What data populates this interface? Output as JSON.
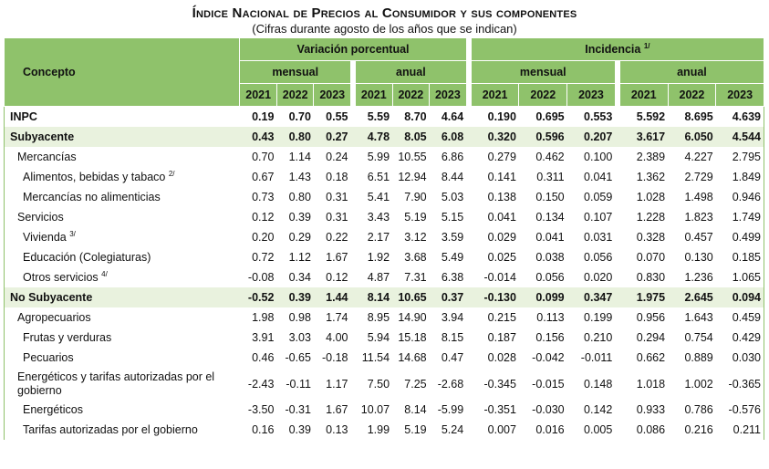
{
  "header": {
    "title": "Índice Nacional de Precios al Consumidor y sus componentes",
    "subtitle": "(Cifras durante agosto de los años que se indican)"
  },
  "columns": {
    "concept": "Concepto",
    "variacion": "Variación porcentual",
    "incidencia": "Incidencia",
    "incidencia_note": "1/",
    "mensual": "mensual",
    "anual": "anual",
    "years": [
      "2021",
      "2022",
      "2023"
    ]
  },
  "rows": [
    {
      "label": "INPC",
      "note": "",
      "level": 0,
      "bold": true,
      "shade": false,
      "vm": [
        "0.19",
        "0.70",
        "0.55"
      ],
      "va": [
        "5.59",
        "8.70",
        "4.64"
      ],
      "im": [
        "0.190",
        "0.695",
        "0.553"
      ],
      "ia": [
        "5.592",
        "8.695",
        "4.639"
      ]
    },
    {
      "label": "Subyacente",
      "note": "",
      "level": 0,
      "bold": true,
      "shade": true,
      "vm": [
        "0.43",
        "0.80",
        "0.27"
      ],
      "va": [
        "4.78",
        "8.05",
        "6.08"
      ],
      "im": [
        "0.320",
        "0.596",
        "0.207"
      ],
      "ia": [
        "3.617",
        "6.050",
        "4.544"
      ]
    },
    {
      "label": "Mercancías",
      "note": "",
      "level": 1,
      "bold": false,
      "shade": false,
      "vm": [
        "0.70",
        "1.14",
        "0.24"
      ],
      "va": [
        "5.99",
        "10.55",
        "6.86"
      ],
      "im": [
        "0.279",
        "0.462",
        "0.100"
      ],
      "ia": [
        "2.389",
        "4.227",
        "2.795"
      ]
    },
    {
      "label": "Alimentos, bebidas y tabaco",
      "note": "2/",
      "level": 2,
      "bold": false,
      "shade": false,
      "vm": [
        "0.67",
        "1.43",
        "0.18"
      ],
      "va": [
        "6.51",
        "12.94",
        "8.44"
      ],
      "im": [
        "0.141",
        "0.311",
        "0.041"
      ],
      "ia": [
        "1.362",
        "2.729",
        "1.849"
      ]
    },
    {
      "label": "Mercancías no alimenticias",
      "note": "",
      "level": 2,
      "bold": false,
      "shade": false,
      "vm": [
        "0.73",
        "0.80",
        "0.31"
      ],
      "va": [
        "5.41",
        "7.90",
        "5.03"
      ],
      "im": [
        "0.138",
        "0.150",
        "0.059"
      ],
      "ia": [
        "1.028",
        "1.498",
        "0.946"
      ]
    },
    {
      "label": "Servicios",
      "note": "",
      "level": 1,
      "bold": false,
      "shade": false,
      "vm": [
        "0.12",
        "0.39",
        "0.31"
      ],
      "va": [
        "3.43",
        "5.19",
        "5.15"
      ],
      "im": [
        "0.041",
        "0.134",
        "0.107"
      ],
      "ia": [
        "1.228",
        "1.823",
        "1.749"
      ]
    },
    {
      "label": "Vivienda",
      "note": "3/",
      "level": 2,
      "bold": false,
      "shade": false,
      "vm": [
        "0.20",
        "0.29",
        "0.22"
      ],
      "va": [
        "2.17",
        "3.12",
        "3.59"
      ],
      "im": [
        "0.029",
        "0.041",
        "0.031"
      ],
      "ia": [
        "0.328",
        "0.457",
        "0.499"
      ]
    },
    {
      "label": "Educación (Colegiaturas)",
      "note": "",
      "level": 2,
      "bold": false,
      "shade": false,
      "vm": [
        "0.72",
        "1.12",
        "1.67"
      ],
      "va": [
        "1.92",
        "3.68",
        "5.49"
      ],
      "im": [
        "0.025",
        "0.038",
        "0.056"
      ],
      "ia": [
        "0.070",
        "0.130",
        "0.185"
      ]
    },
    {
      "label": "Otros servicios",
      "note": "4/",
      "level": 2,
      "bold": false,
      "shade": false,
      "vm": [
        "-0.08",
        "0.34",
        "0.12"
      ],
      "va": [
        "4.87",
        "7.31",
        "6.38"
      ],
      "im": [
        "-0.014",
        "0.056",
        "0.020"
      ],
      "ia": [
        "0.830",
        "1.236",
        "1.065"
      ]
    },
    {
      "label": "No Subyacente",
      "note": "",
      "level": 0,
      "bold": true,
      "shade": true,
      "vm": [
        "-0.52",
        "0.39",
        "1.44"
      ],
      "va": [
        "8.14",
        "10.65",
        "0.37"
      ],
      "im": [
        "-0.130",
        "0.099",
        "0.347"
      ],
      "ia": [
        "1.975",
        "2.645",
        "0.094"
      ]
    },
    {
      "label": "Agropecuarios",
      "note": "",
      "level": 1,
      "bold": false,
      "shade": false,
      "vm": [
        "1.98",
        "0.98",
        "1.74"
      ],
      "va": [
        "8.95",
        "14.90",
        "3.94"
      ],
      "im": [
        "0.215",
        "0.113",
        "0.199"
      ],
      "ia": [
        "0.956",
        "1.643",
        "0.459"
      ]
    },
    {
      "label": "Frutas y verduras",
      "note": "",
      "level": 2,
      "bold": false,
      "shade": false,
      "vm": [
        "3.91",
        "3.03",
        "4.00"
      ],
      "va": [
        "5.94",
        "15.18",
        "8.15"
      ],
      "im": [
        "0.187",
        "0.156",
        "0.210"
      ],
      "ia": [
        "0.294",
        "0.754",
        "0.429"
      ]
    },
    {
      "label": "Pecuarios",
      "note": "",
      "level": 2,
      "bold": false,
      "shade": false,
      "vm": [
        "0.46",
        "-0.65",
        "-0.18"
      ],
      "va": [
        "11.54",
        "14.68",
        "0.47"
      ],
      "im": [
        "0.028",
        "-0.042",
        "-0.011"
      ],
      "ia": [
        "0.662",
        "0.889",
        "0.030"
      ]
    },
    {
      "label": "Energéticos y tarifas autorizadas por el gobierno",
      "note": "",
      "level": 1,
      "bold": false,
      "shade": false,
      "tall": true,
      "vm": [
        "-2.43",
        "-0.11",
        "1.17"
      ],
      "va": [
        "7.50",
        "7.25",
        "-2.68"
      ],
      "im": [
        "-0.345",
        "-0.015",
        "0.148"
      ],
      "ia": [
        "1.018",
        "1.002",
        "-0.365"
      ]
    },
    {
      "label": "Energéticos",
      "note": "",
      "level": 2,
      "bold": false,
      "shade": false,
      "vm": [
        "-3.50",
        "-0.31",
        "1.67"
      ],
      "va": [
        "10.07",
        "8.14",
        "-5.99"
      ],
      "im": [
        "-0.351",
        "-0.030",
        "0.142"
      ],
      "ia": [
        "0.933",
        "0.786",
        "-0.576"
      ]
    },
    {
      "label": "Tarifas autorizadas por el gobierno",
      "note": "",
      "level": 2,
      "bold": false,
      "shade": false,
      "vm": [
        "0.16",
        "0.39",
        "0.13"
      ],
      "va": [
        "1.99",
        "5.19",
        "5.24"
      ],
      "im": [
        "0.007",
        "0.016",
        "0.005"
      ],
      "ia": [
        "0.086",
        "0.216",
        "0.211"
      ]
    }
  ]
}
